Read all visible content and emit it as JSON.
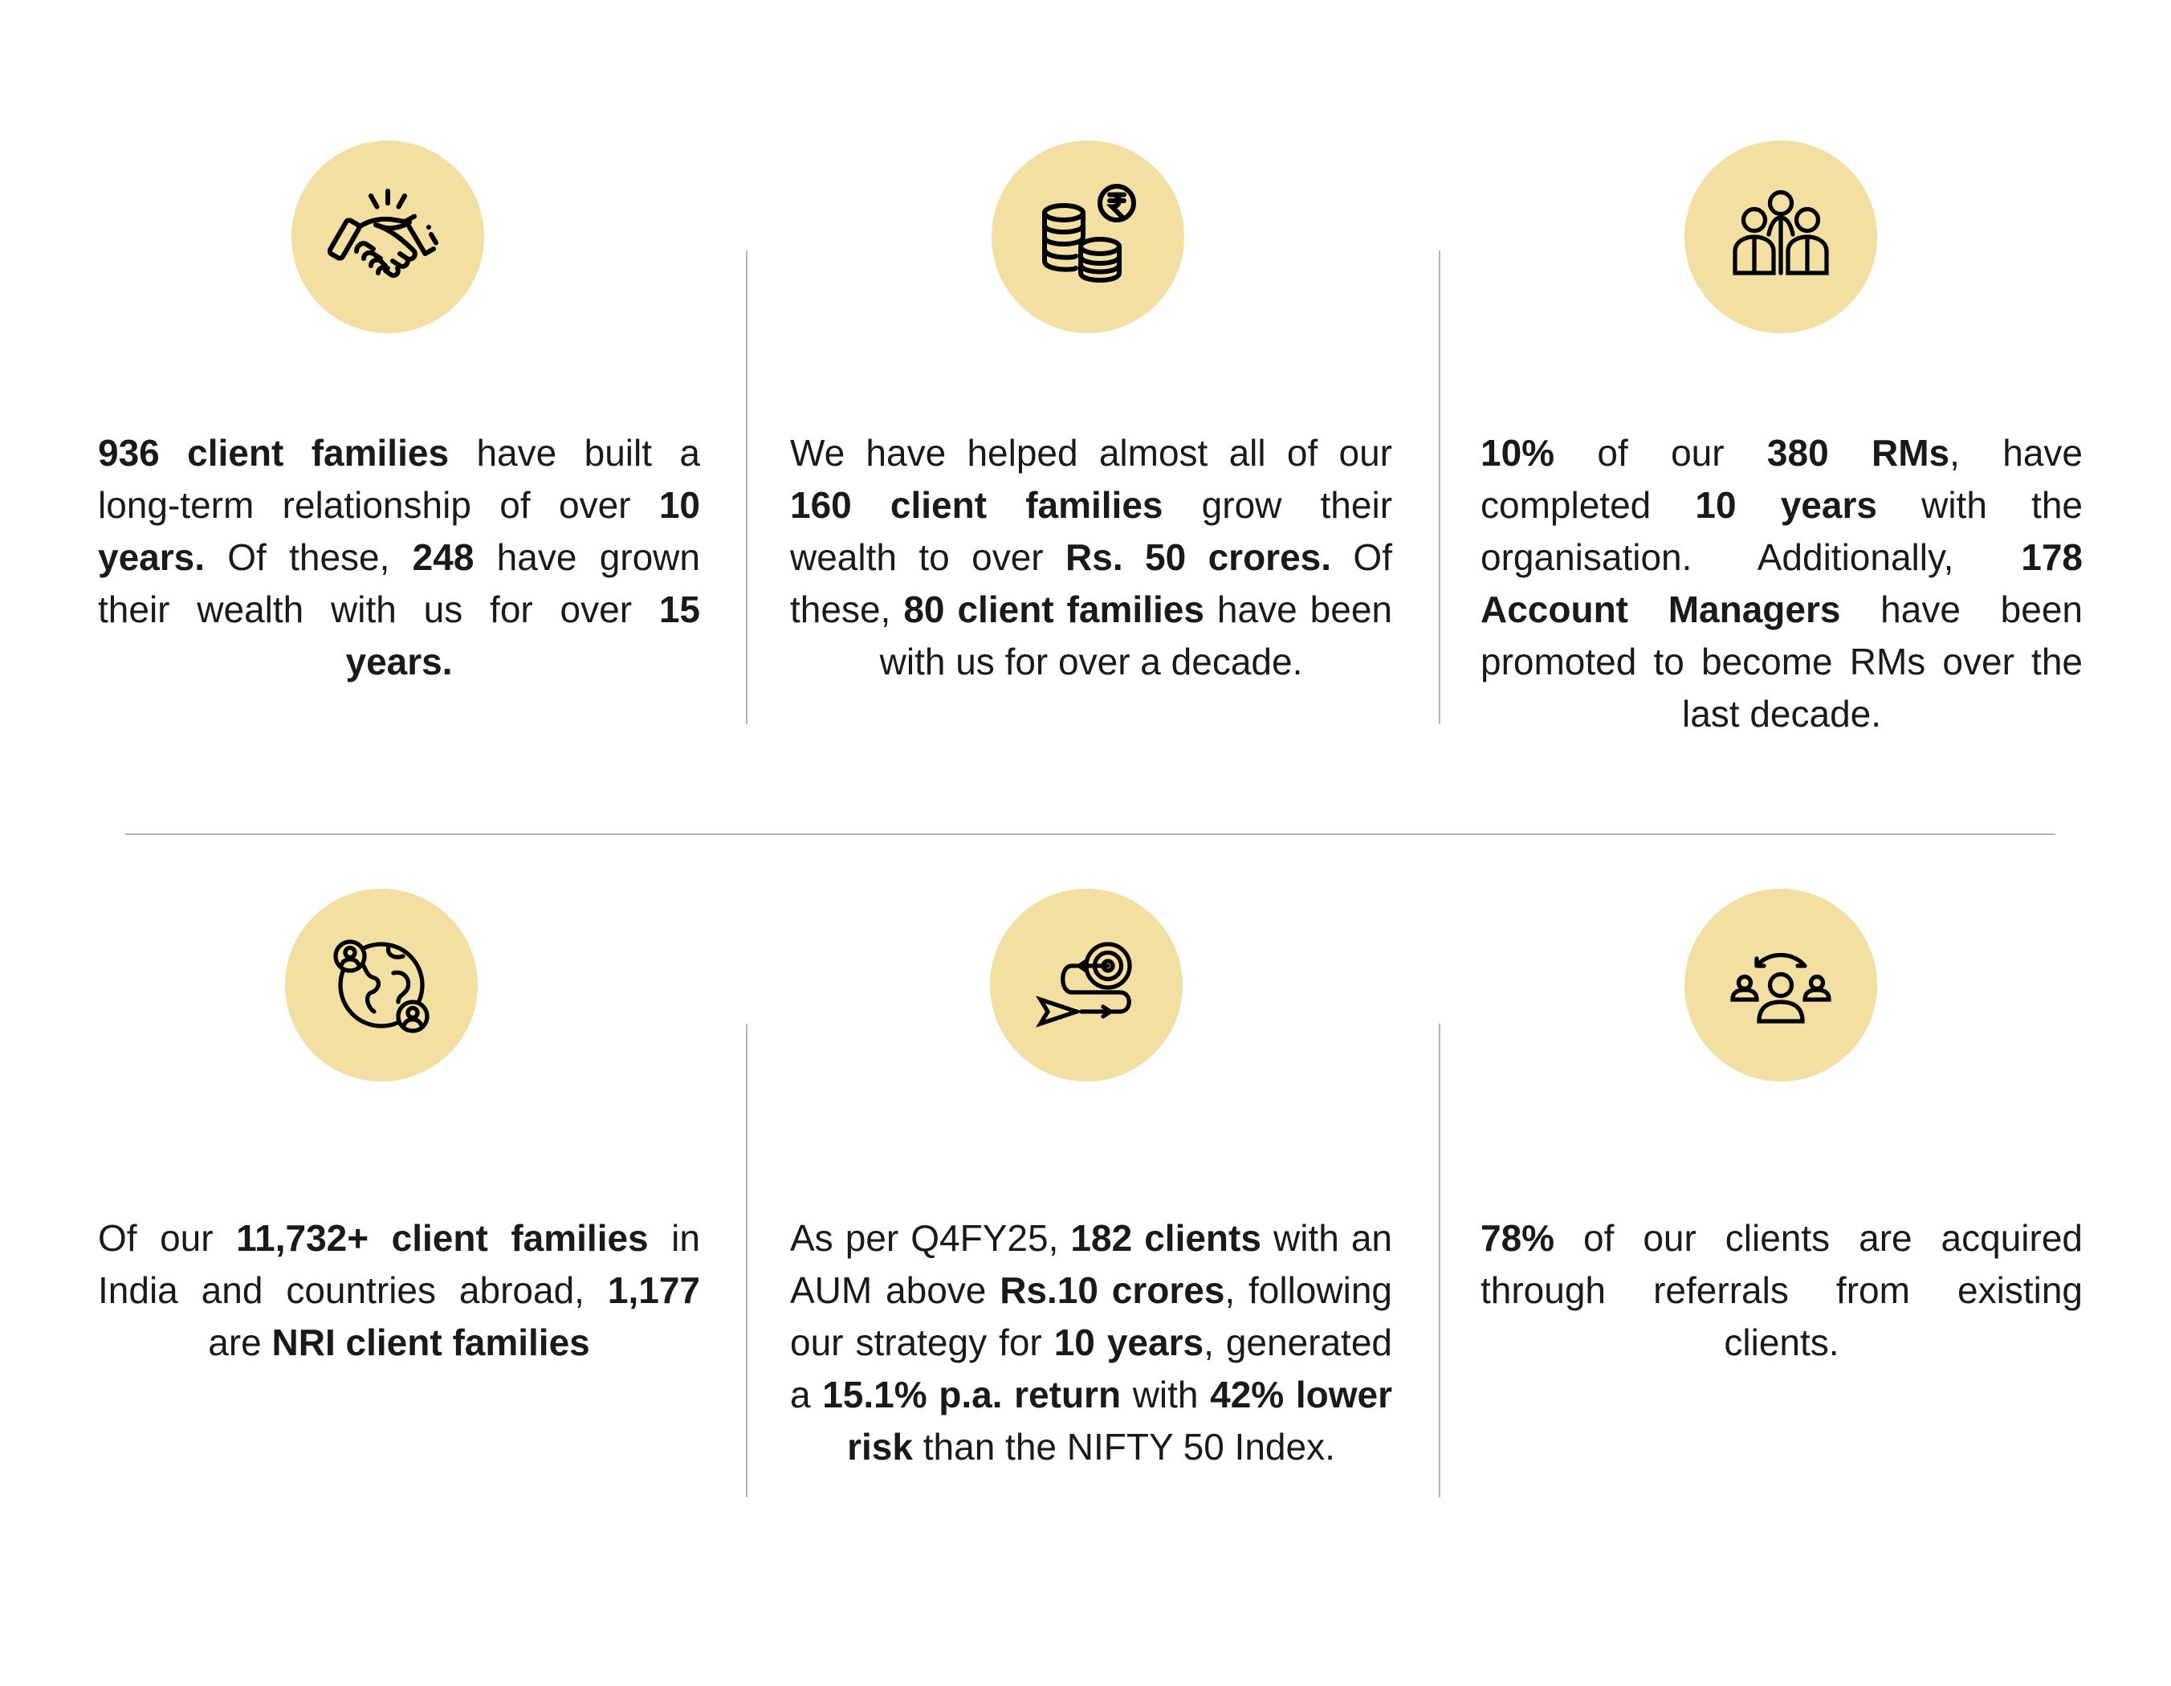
{
  "colors": {
    "circle_fill": "#F3DFA2",
    "text": "#1a1a1a",
    "divider": "#b5b5b5"
  },
  "cards": [
    {
      "icon": "handshake-icon",
      "parts": [
        {
          "t": "936 client families",
          "b": true
        },
        {
          "t": " have built a long-term relationship of over "
        },
        {
          "t": "10 years.",
          "b": true
        },
        {
          "t": " Of these, "
        },
        {
          "t": "248",
          "b": true
        },
        {
          "t": " have grown their wealth with us for over "
        },
        {
          "t": "15 years.",
          "b": true
        }
      ]
    },
    {
      "icon": "coins-rupee-icon",
      "parts": [
        {
          "t": "We have helped almost all of our "
        },
        {
          "t": "160 client families",
          "b": true
        },
        {
          "t": " grow their wealth to over "
        },
        {
          "t": "Rs. 50 crores.",
          "b": true
        },
        {
          "t": " Of these, "
        },
        {
          "t": "80 client families",
          "b": true
        },
        {
          "t": " have been with us for over a decade."
        }
      ]
    },
    {
      "icon": "team-icon",
      "parts": [
        {
          "t": "10%",
          "b": true
        },
        {
          "t": " of our "
        },
        {
          "t": "380 RMs",
          "b": true
        },
        {
          "t": ", have completed "
        },
        {
          "t": "10 years",
          "b": true
        },
        {
          "t": " with the organisation. Additionally, "
        },
        {
          "t": "178 Account Managers",
          "b": true
        },
        {
          "t": " have been promoted to become RMs over the last decade."
        }
      ]
    },
    {
      "icon": "globe-people-icon",
      "parts": [
        {
          "t": "Of our "
        },
        {
          "t": "11,732+ client families",
          "b": true
        },
        {
          "t": " in India and countries abroad, "
        },
        {
          "t": "1,177",
          "b": true
        },
        {
          "t": " are "
        },
        {
          "t": "NRI client families",
          "b": true
        }
      ]
    },
    {
      "icon": "target-strategy-icon",
      "parts": [
        {
          "t": "As per Q4FY25, "
        },
        {
          "t": "182 clients",
          "b": true
        },
        {
          "t": " with an AUM above "
        },
        {
          "t": "Rs.10 crores",
          "b": true
        },
        {
          "t": ", following our strategy for "
        },
        {
          "t": "10 years",
          "b": true
        },
        {
          "t": ", generated a "
        },
        {
          "t": "15.1% p.a. return",
          "b": true
        },
        {
          "t": " with "
        },
        {
          "t": "42% lower risk",
          "b": true
        },
        {
          "t": " than the NIFTY 50 Index."
        }
      ]
    },
    {
      "icon": "referral-icon",
      "parts": [
        {
          "t": "78%",
          "b": true
        },
        {
          "t": " of our clients are acquired through referrals from existing clients."
        }
      ]
    }
  ]
}
